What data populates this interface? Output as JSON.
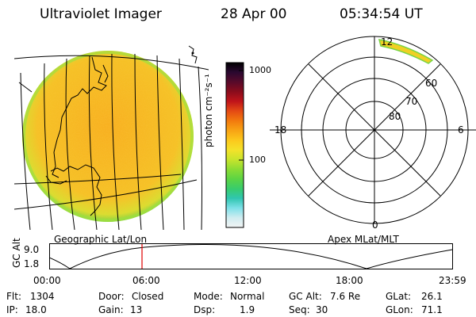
{
  "header": {
    "instrument": "Ultraviolet Imager",
    "date": "28 Apr 00",
    "time": "05:34:54 UT"
  },
  "colorbar": {
    "unit_label": "photon cm⁻²s⁻¹",
    "tick_labels": [
      "1000",
      "100"
    ],
    "colors": [
      "#000000",
      "#2a0830",
      "#580a2a",
      "#8a0c1c",
      "#c0141a",
      "#e44a14",
      "#f27a0e",
      "#f8a414",
      "#fcc81c",
      "#f4e22a",
      "#c8e42c",
      "#8cdc34",
      "#5cd444",
      "#38cc6c",
      "#30c6b0",
      "#7ee0e8",
      "#d0ecf0",
      "#f2f4f4"
    ]
  },
  "left_panel": {
    "label": "Geographic Lat/Lon"
  },
  "right_panel": {
    "label": "Apex MLat/MLT",
    "mlt_labels": [
      "12",
      "18",
      "6",
      "0"
    ],
    "lat_labels": [
      "60",
      "70",
      "80"
    ]
  },
  "timeline": {
    "y_label": "GC Alt",
    "y_ticks": [
      "9.0",
      "1.8"
    ],
    "x_ticks": [
      "00:00",
      "06:00",
      "12:00",
      "18:00",
      "23:59"
    ],
    "marker_time": "05:34"
  },
  "status": {
    "row1": [
      {
        "key": "Flt:",
        "value": "1304"
      },
      {
        "key": "Door:",
        "value": "Closed"
      },
      {
        "key": "Mode:",
        "value": "Normal"
      },
      {
        "key": "GC Alt:",
        "value": "7.6 Re"
      },
      {
        "key": "GLat:",
        "value": "26.1"
      }
    ],
    "row2": [
      {
        "key": "IP:",
        "value": "18.0"
      },
      {
        "key": "Gain:",
        "value": "13"
      },
      {
        "key": "Dsp:",
        "value": "1.9"
      },
      {
        "key": "Seq:",
        "value": "30"
      },
      {
        "key": "GLon:",
        "value": "71.1"
      }
    ]
  }
}
